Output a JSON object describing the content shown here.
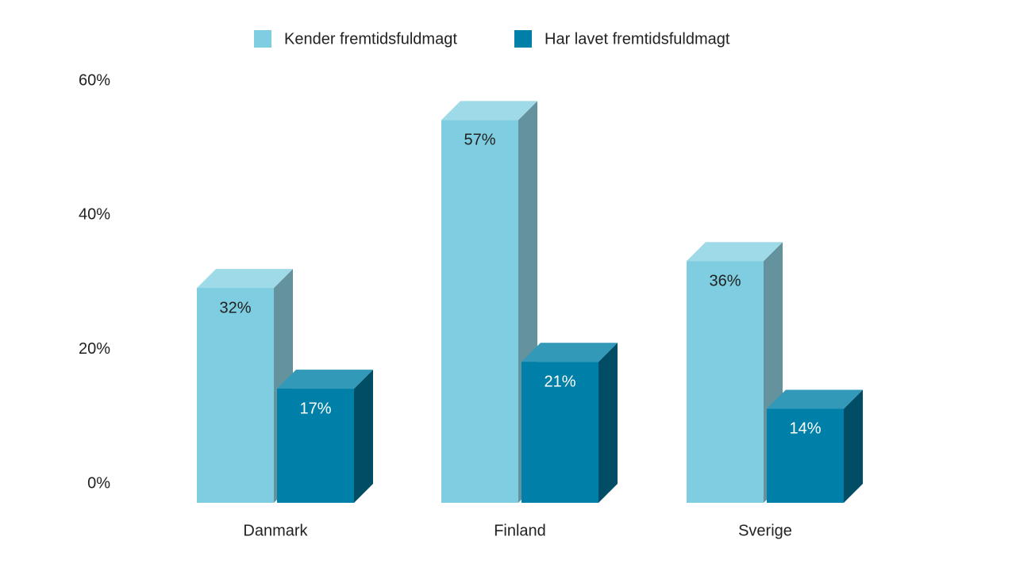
{
  "chart_data": {
    "type": "bar3d",
    "categories": [
      "Danmark",
      "Finland",
      "Sverige"
    ],
    "series": [
      {
        "name": "Kender fremtidsfuldmagt",
        "color": "#7ecde0",
        "values": [
          32,
          57,
          36
        ],
        "value_labels": [
          "32%",
          "57%",
          "36%"
        ]
      },
      {
        "name": "Har lavet fremtidsfuldmagt",
        "color": "#0080a8",
        "values": [
          17,
          21,
          14
        ],
        "value_labels": [
          "17%",
          "21%",
          "14%"
        ]
      }
    ],
    "ylim": [
      0,
      60
    ],
    "yticks": [
      {
        "value": 0,
        "label": "0%"
      },
      {
        "value": 20,
        "label": "20%"
      },
      {
        "value": 40,
        "label": "40%"
      },
      {
        "value": 60,
        "label": "60%"
      }
    ],
    "legend": "top"
  }
}
